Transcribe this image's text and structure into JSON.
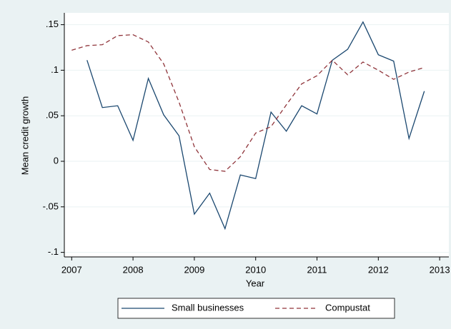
{
  "chart_data": {
    "type": "line",
    "xlabel": "Year",
    "ylabel": "Mean credit growth",
    "x": [
      2007,
      2007.25,
      2007.5,
      2007.75,
      2008,
      2008.25,
      2008.5,
      2008.75,
      2009,
      2009.25,
      2009.5,
      2009.75,
      2010,
      2010.25,
      2010.5,
      2010.75,
      2011,
      2011.25,
      2011.5,
      2011.75,
      2012,
      2012.25,
      2012.5,
      2012.75
    ],
    "series": [
      {
        "name": "Small businesses",
        "color": "#1a476f",
        "dash": "solid",
        "values": [
          null,
          0.111,
          0.059,
          0.061,
          0.023,
          0.091,
          0.051,
          0.028,
          -0.058,
          -0.035,
          -0.074,
          -0.015,
          -0.019,
          0.054,
          0.033,
          0.061,
          0.052,
          0.111,
          0.123,
          0.153,
          0.117,
          0.11,
          0.025,
          0.077
        ]
      },
      {
        "name": "Compustat",
        "color": "#90353b",
        "dash": "dashed",
        "values": [
          0.122,
          0.127,
          0.128,
          0.138,
          0.139,
          0.131,
          0.107,
          0.065,
          0.016,
          -0.009,
          -0.011,
          0.005,
          0.031,
          0.038,
          0.062,
          0.085,
          0.094,
          0.111,
          0.095,
          0.109,
          0.1,
          0.09,
          0.098,
          0.103
        ]
      }
    ],
    "xlim": [
      2006.88,
      2013.15
    ],
    "ylim": [
      -0.105,
      0.163
    ],
    "xticks": [
      2007,
      2008,
      2009,
      2010,
      2011,
      2012,
      2013
    ],
    "yticks": [
      {
        "value": -0.1,
        "label": "-.1"
      },
      {
        "value": -0.05,
        "label": "-.05"
      },
      0,
      {
        "value": 0.05,
        "label": ".05"
      },
      {
        "value": 0.1,
        "label": ".1"
      },
      {
        "value": 0.15,
        "label": ".15"
      }
    ],
    "grid": true,
    "legend": "bottom"
  }
}
